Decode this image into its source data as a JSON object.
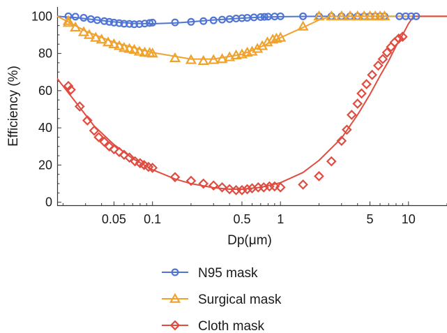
{
  "chart_data": {
    "type": "scatter",
    "xlabel": "Dp(μm)",
    "ylabel": "Efficiency (%)",
    "xscale": "log",
    "xlim": [
      0.018,
      20
    ],
    "ylim": [
      -2,
      105
    ],
    "xticks": [
      {
        "value": 0.05,
        "label": "0.05"
      },
      {
        "value": 0.1,
        "label": "0.1"
      },
      {
        "value": 0.5,
        "label": "0.5"
      },
      {
        "value": 1,
        "label": "1"
      },
      {
        "value": 5,
        "label": "5"
      },
      {
        "value": 10,
        "label": "10"
      }
    ],
    "yticks": [
      {
        "value": 0,
        "label": "0"
      },
      {
        "value": 20,
        "label": "20"
      },
      {
        "value": 40,
        "label": "40"
      },
      {
        "value": 60,
        "label": "60"
      },
      {
        "value": 80,
        "label": "80"
      },
      {
        "value": 100,
        "label": "100"
      }
    ],
    "grid": false,
    "legend_position": "bottom",
    "series": [
      {
        "name": "N95 mask",
        "color": "#4f74d4",
        "marker": "circle",
        "points": [
          [
            0.022,
            100
          ],
          [
            0.025,
            99.8
          ],
          [
            0.029,
            99.2
          ],
          [
            0.033,
            98.5
          ],
          [
            0.037,
            97.9
          ],
          [
            0.042,
            97.4
          ],
          [
            0.046,
            97.0
          ],
          [
            0.05,
            96.6
          ],
          [
            0.055,
            96.3
          ],
          [
            0.06,
            96.0
          ],
          [
            0.066,
            95.9
          ],
          [
            0.072,
            95.7
          ],
          [
            0.079,
            95.8
          ],
          [
            0.087,
            96.1
          ],
          [
            0.095,
            96.4
          ],
          [
            0.1,
            96.6
          ],
          [
            0.15,
            96.7
          ],
          [
            0.2,
            97.0
          ],
          [
            0.25,
            97.4
          ],
          [
            0.3,
            97.8
          ],
          [
            0.35,
            98.2
          ],
          [
            0.4,
            98.5
          ],
          [
            0.45,
            98.8
          ],
          [
            0.5,
            99.0
          ],
          [
            0.55,
            99.2
          ],
          [
            0.62,
            99.4
          ],
          [
            0.7,
            99.6
          ],
          [
            0.75,
            99.7
          ],
          [
            0.8,
            99.8
          ],
          [
            0.9,
            99.9
          ],
          [
            1.0,
            100
          ],
          [
            1.5,
            100
          ],
          [
            2.0,
            100
          ],
          [
            2.5,
            100
          ],
          [
            3.0,
            100
          ],
          [
            3.5,
            100
          ],
          [
            4.0,
            100
          ],
          [
            4.5,
            100
          ],
          [
            5.0,
            100
          ],
          [
            5.5,
            100
          ],
          [
            6.0,
            100
          ],
          [
            6.5,
            100
          ],
          [
            8.5,
            100
          ],
          [
            9.5,
            100
          ],
          [
            10.5,
            100
          ],
          [
            11.5,
            100
          ]
        ],
        "fit": [
          [
            0.018,
            100
          ],
          [
            0.025,
            99.3
          ],
          [
            0.035,
            98.2
          ],
          [
            0.05,
            97.0
          ],
          [
            0.07,
            96.2
          ],
          [
            0.1,
            96.0
          ],
          [
            0.15,
            96.4
          ],
          [
            0.2,
            97.0
          ],
          [
            0.3,
            98.0
          ],
          [
            0.5,
            99.0
          ],
          [
            0.7,
            99.5
          ],
          [
            1.0,
            99.8
          ],
          [
            2.0,
            100
          ],
          [
            5.0,
            100
          ],
          [
            10,
            100
          ],
          [
            20,
            100
          ]
        ]
      },
      {
        "name": "Surgical mask",
        "color": "#efa32e",
        "marker": "triangle",
        "points": [
          [
            0.022,
            96.5
          ],
          [
            0.022,
            97.5
          ],
          [
            0.025,
            94.0
          ],
          [
            0.029,
            91.5
          ],
          [
            0.032,
            90.0
          ],
          [
            0.036,
            88.5
          ],
          [
            0.04,
            87.5
          ],
          [
            0.045,
            86.0
          ],
          [
            0.05,
            85.0
          ],
          [
            0.055,
            84.0
          ],
          [
            0.06,
            83.0
          ],
          [
            0.066,
            82.5
          ],
          [
            0.072,
            82.0
          ],
          [
            0.079,
            81.0
          ],
          [
            0.087,
            80.5
          ],
          [
            0.095,
            80.3
          ],
          [
            0.1,
            80.0
          ],
          [
            0.15,
            77.5
          ],
          [
            0.2,
            76.5
          ],
          [
            0.25,
            76.0
          ],
          [
            0.3,
            76.5
          ],
          [
            0.35,
            77.0
          ],
          [
            0.4,
            78.0
          ],
          [
            0.45,
            79.0
          ],
          [
            0.5,
            79.5
          ],
          [
            0.55,
            80.5
          ],
          [
            0.6,
            81.0
          ],
          [
            0.66,
            82.5
          ],
          [
            0.72,
            84.0
          ],
          [
            0.79,
            86.0
          ],
          [
            0.87,
            87.5
          ],
          [
            0.93,
            88.0
          ],
          [
            1.0,
            88.5
          ],
          [
            1.5,
            94.5
          ],
          [
            2.0,
            100
          ],
          [
            2.5,
            100
          ],
          [
            3.0,
            100
          ],
          [
            3.5,
            100
          ],
          [
            4.0,
            100
          ],
          [
            4.5,
            100
          ],
          [
            5.0,
            100
          ],
          [
            5.5,
            100
          ],
          [
            6.0,
            100
          ],
          [
            6.5,
            100
          ]
        ],
        "fit": [
          [
            0.018,
            100
          ],
          [
            0.022,
            97.0
          ],
          [
            0.03,
            92.0
          ],
          [
            0.05,
            86.0
          ],
          [
            0.1,
            80.5
          ],
          [
            0.2,
            77.0
          ],
          [
            0.3,
            77.0
          ],
          [
            0.5,
            79.5
          ],
          [
            0.7,
            83.5
          ],
          [
            1.0,
            88.5
          ],
          [
            1.5,
            94.0
          ],
          [
            2.0,
            98.0
          ],
          [
            2.5,
            100
          ],
          [
            5.0,
            100
          ],
          [
            10,
            100
          ],
          [
            20,
            100
          ]
        ]
      },
      {
        "name": "Cloth mask",
        "color": "#e04c40",
        "marker": "diamond",
        "points": [
          [
            0.022,
            62.5
          ],
          [
            0.023,
            60.5
          ],
          [
            0.027,
            51.5
          ],
          [
            0.031,
            44.0
          ],
          [
            0.035,
            38.5
          ],
          [
            0.038,
            35.0
          ],
          [
            0.042,
            32.5
          ],
          [
            0.046,
            30.0
          ],
          [
            0.05,
            28.5
          ],
          [
            0.055,
            27.0
          ],
          [
            0.06,
            25.5
          ],
          [
            0.066,
            24.0
          ],
          [
            0.073,
            22.0
          ],
          [
            0.08,
            21.0
          ],
          [
            0.086,
            20.0
          ],
          [
            0.093,
            19.0
          ],
          [
            0.1,
            18.5
          ],
          [
            0.15,
            13.5
          ],
          [
            0.2,
            11.5
          ],
          [
            0.25,
            10.0
          ],
          [
            0.3,
            9.0
          ],
          [
            0.35,
            8.0
          ],
          [
            0.4,
            7.0
          ],
          [
            0.45,
            6.5
          ],
          [
            0.5,
            6.5
          ],
          [
            0.55,
            7.0
          ],
          [
            0.6,
            7.5
          ],
          [
            0.67,
            8.0
          ],
          [
            0.74,
            8.0
          ],
          [
            0.82,
            8.5
          ],
          [
            0.9,
            8.5
          ],
          [
            1.0,
            8.0
          ],
          [
            1.5,
            9.5
          ],
          [
            2.0,
            14.0
          ],
          [
            2.5,
            22.0
          ],
          [
            3.0,
            33.0
          ],
          [
            3.3,
            39.0
          ],
          [
            3.6,
            47.0
          ],
          [
            4.0,
            53.0
          ],
          [
            4.3,
            58.5
          ],
          [
            4.7,
            63.5
          ],
          [
            5.2,
            68.5
          ],
          [
            5.8,
            73.5
          ],
          [
            6.3,
            77.0
          ],
          [
            6.8,
            80.5
          ],
          [
            7.3,
            83.5
          ],
          [
            7.8,
            86.0
          ],
          [
            8.4,
            88.0
          ],
          [
            9.0,
            89.0
          ]
        ],
        "fit": [
          [
            0.018,
            66.5
          ],
          [
            0.025,
            54.0
          ],
          [
            0.035,
            41.0
          ],
          [
            0.05,
            31.0
          ],
          [
            0.07,
            23.5
          ],
          [
            0.1,
            17.5
          ],
          [
            0.15,
            12.5
          ],
          [
            0.2,
            10.0
          ],
          [
            0.3,
            7.8
          ],
          [
            0.4,
            7.0
          ],
          [
            0.5,
            7.0
          ],
          [
            0.7,
            8.0
          ],
          [
            1.0,
            10.5
          ],
          [
            1.5,
            16.0
          ],
          [
            2.0,
            22.5
          ],
          [
            3.0,
            34.5
          ],
          [
            4.0,
            47.0
          ],
          [
            5.0,
            58.0
          ],
          [
            6.0,
            68.0
          ],
          [
            7.0,
            76.0
          ],
          [
            8.0,
            84.0
          ],
          [
            9.0,
            90.0
          ],
          [
            10.0,
            96.0
          ],
          [
            11.0,
            100
          ],
          [
            20,
            100
          ]
        ]
      }
    ]
  }
}
